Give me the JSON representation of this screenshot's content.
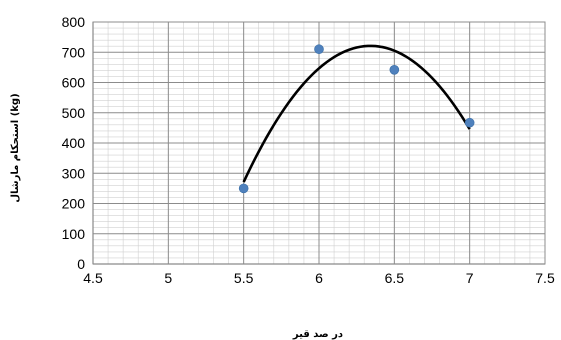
{
  "chart_data": {
    "type": "scatter",
    "xlabel": "در صد قیر",
    "ylabel": "استحکام مارشال (kg)",
    "xlim": [
      4.5,
      7.5
    ],
    "ylim": [
      0,
      800
    ],
    "x_ticks": [
      "4.5",
      "5",
      "5.5",
      "6",
      "6.5",
      "7",
      "7.5"
    ],
    "y_ticks": [
      "0",
      "100",
      "200",
      "300",
      "400",
      "500",
      "600",
      "700",
      "800"
    ],
    "grid": true,
    "legend": "none",
    "series": [
      {
        "points": [
          {
            "x": 5.5,
            "y": 250
          },
          {
            "x": 6.0,
            "y": 710
          },
          {
            "x": 6.5,
            "y": 642
          },
          {
            "x": 7.0,
            "y": 467
          }
        ],
        "marker_color": "#4f81bd"
      }
    ],
    "trendline": {
      "type": "polynomial",
      "order": 2,
      "x_range": [
        5.5,
        7.0
      ],
      "color": "#000000"
    }
  }
}
